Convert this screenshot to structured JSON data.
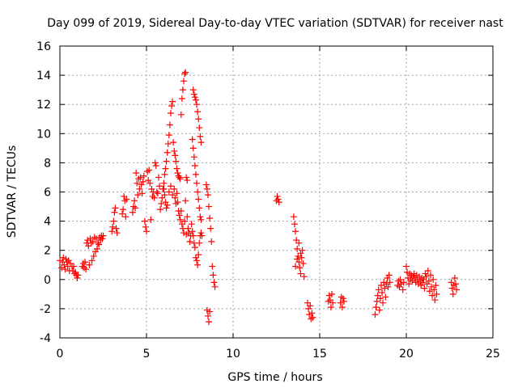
{
  "chart_data": {
    "type": "scatter",
    "title": "Day 099 of 2019, Sidereal Day-to-day VTEC variation (SDTVAR) for receiver nast",
    "xlabel": "GPS time / hours",
    "ylabel": "SDTVAR / TECUs",
    "xlim": [
      0,
      25
    ],
    "ylim": [
      -4,
      16
    ],
    "xticks": [
      0,
      5,
      10,
      15,
      20,
      25
    ],
    "yticks": [
      -4,
      -2,
      0,
      2,
      4,
      6,
      8,
      10,
      12,
      14,
      16
    ],
    "grid": true,
    "marker": "+",
    "series": [
      {
        "name": "SDTVAR",
        "color": "#ff0000",
        "points": [
          [
            0.0,
            1.3
          ],
          [
            0.1,
            0.8
          ],
          [
            0.15,
            1.2
          ],
          [
            0.2,
            1.5
          ],
          [
            0.25,
            1.0
          ],
          [
            0.3,
            0.7
          ],
          [
            0.35,
            1.4
          ],
          [
            0.4,
            1.2
          ],
          [
            0.45,
            0.9
          ],
          [
            0.5,
            1.3
          ],
          [
            0.55,
            0.6
          ],
          [
            0.6,
            1.1
          ],
          [
            0.7,
            0.9
          ],
          [
            0.75,
            0.6
          ],
          [
            0.8,
            0.9
          ],
          [
            0.85,
            0.4
          ],
          [
            0.9,
            0.5
          ],
          [
            0.95,
            0.3
          ],
          [
            1.0,
            0.1
          ],
          [
            1.05,
            0.3
          ],
          [
            1.3,
            0.9
          ],
          [
            1.35,
            1.1
          ],
          [
            1.4,
            0.8
          ],
          [
            1.45,
            1.2
          ],
          [
            1.5,
            0.7
          ],
          [
            1.55,
            2.5
          ],
          [
            1.6,
            2.7
          ],
          [
            1.65,
            2.3
          ],
          [
            1.7,
            1.0
          ],
          [
            1.75,
            2.8
          ],
          [
            1.8,
            2.5
          ],
          [
            1.85,
            1.3
          ],
          [
            1.9,
            2.6
          ],
          [
            1.95,
            1.6
          ],
          [
            2.0,
            2.9
          ],
          [
            2.05,
            1.9
          ],
          [
            2.1,
            2.8
          ],
          [
            2.15,
            2.1
          ],
          [
            2.2,
            2.5
          ],
          [
            2.25,
            2.4
          ],
          [
            2.3,
            2.9
          ],
          [
            2.35,
            2.7
          ],
          [
            2.4,
            3.0
          ],
          [
            2.45,
            2.8
          ],
          [
            2.5,
            3.0
          ],
          [
            3.0,
            3.3
          ],
          [
            3.05,
            3.6
          ],
          [
            3.1,
            4.0
          ],
          [
            3.15,
            4.6
          ],
          [
            3.2,
            4.9
          ],
          [
            3.25,
            3.5
          ],
          [
            3.3,
            3.2
          ],
          [
            3.6,
            4.5
          ],
          [
            3.65,
            4.8
          ],
          [
            3.7,
            5.7
          ],
          [
            3.75,
            5.4
          ],
          [
            3.8,
            4.3
          ],
          [
            3.85,
            5.5
          ],
          [
            4.2,
            4.6
          ],
          [
            4.25,
            5.0
          ],
          [
            4.3,
            5.4
          ],
          [
            4.35,
            4.9
          ],
          [
            4.4,
            7.3
          ],
          [
            4.45,
            6.6
          ],
          [
            4.5,
            5.8
          ],
          [
            4.55,
            6.9
          ],
          [
            4.6,
            6.2
          ],
          [
            4.65,
            7.0
          ],
          [
            4.7,
            6.5
          ],
          [
            4.75,
            5.9
          ],
          [
            4.8,
            6.7
          ],
          [
            4.85,
            7.1
          ],
          [
            4.9,
            4.0
          ],
          [
            4.95,
            3.6
          ],
          [
            5.0,
            3.3
          ],
          [
            5.05,
            7.4
          ],
          [
            5.1,
            6.8
          ],
          [
            5.15,
            7.5
          ],
          [
            5.2,
            6.6
          ],
          [
            5.25,
            4.1
          ],
          [
            5.3,
            6.2
          ],
          [
            5.35,
            5.7
          ],
          [
            5.4,
            6.0
          ],
          [
            5.45,
            5.6
          ],
          [
            5.5,
            8.0
          ],
          [
            5.55,
            7.8
          ],
          [
            5.6,
            6.0
          ],
          [
            5.65,
            5.9
          ],
          [
            5.7,
            7.0
          ],
          [
            5.75,
            6.4
          ],
          [
            5.8,
            4.8
          ],
          [
            5.85,
            5.2
          ],
          [
            5.9,
            5.6
          ],
          [
            5.95,
            6.2
          ],
          [
            6.0,
            6.6
          ],
          [
            6.05,
            7.2
          ],
          [
            6.1,
            7.6
          ],
          [
            6.15,
            8.1
          ],
          [
            6.2,
            8.7
          ],
          [
            6.25,
            9.3
          ],
          [
            6.3,
            9.9
          ],
          [
            6.35,
            10.6
          ],
          [
            6.4,
            11.4
          ],
          [
            6.45,
            11.9
          ],
          [
            6.5,
            12.2
          ],
          [
            6.55,
            9.4
          ],
          [
            6.6,
            8.8
          ],
          [
            6.65,
            8.5
          ],
          [
            6.7,
            8.1
          ],
          [
            6.75,
            7.6
          ],
          [
            6.8,
            7.3
          ],
          [
            6.85,
            7.1
          ],
          [
            6.9,
            7.0
          ],
          [
            6.95,
            6.9
          ],
          [
            7.0,
            11.3
          ],
          [
            7.05,
            12.4
          ],
          [
            7.1,
            13.0
          ],
          [
            7.15,
            13.6
          ],
          [
            7.2,
            14.1
          ],
          [
            7.25,
            14.2
          ],
          [
            7.3,
            7.0
          ],
          [
            7.35,
            6.8
          ],
          [
            6.0,
            6.2
          ],
          [
            6.05,
            5.8
          ],
          [
            6.1,
            5.3
          ],
          [
            6.15,
            4.9
          ],
          [
            6.2,
            5.1
          ],
          [
            6.3,
            6.0
          ],
          [
            6.4,
            6.4
          ],
          [
            6.5,
            5.8
          ],
          [
            6.6,
            6.2
          ],
          [
            6.65,
            5.6
          ],
          [
            6.7,
            5.2
          ],
          [
            6.75,
            5.9
          ],
          [
            6.8,
            5.3
          ],
          [
            6.85,
            4.7
          ],
          [
            6.9,
            4.4
          ],
          [
            6.95,
            4.1
          ],
          [
            7.0,
            4.7
          ],
          [
            7.05,
            3.8
          ],
          [
            7.1,
            3.5
          ],
          [
            7.15,
            3.2
          ],
          [
            7.2,
            4.0
          ],
          [
            7.25,
            5.4
          ],
          [
            7.3,
            3.1
          ],
          [
            7.35,
            4.3
          ],
          [
            7.4,
            3.5
          ],
          [
            7.45,
            3.2
          ],
          [
            7.5,
            2.6
          ],
          [
            7.55,
            3.0
          ],
          [
            7.65,
            9.6
          ],
          [
            7.7,
            9.0
          ],
          [
            7.75,
            8.4
          ],
          [
            7.8,
            7.8
          ],
          [
            7.85,
            7.2
          ],
          [
            7.9,
            6.6
          ],
          [
            7.95,
            6.0
          ],
          [
            8.0,
            5.5
          ],
          [
            8.05,
            4.9
          ],
          [
            8.1,
            4.3
          ],
          [
            8.15,
            4.1
          ],
          [
            7.7,
            13.0
          ],
          [
            7.75,
            12.7
          ],
          [
            7.8,
            12.5
          ],
          [
            7.85,
            12.3
          ],
          [
            7.9,
            12.0
          ],
          [
            7.95,
            11.5
          ],
          [
            8.0,
            11.0
          ],
          [
            8.05,
            10.4
          ],
          [
            8.1,
            9.8
          ],
          [
            8.15,
            9.4
          ],
          [
            7.6,
            3.8
          ],
          [
            7.65,
            3.3
          ],
          [
            7.7,
            3.0
          ],
          [
            7.75,
            2.5
          ],
          [
            7.8,
            2.2
          ],
          [
            7.85,
            1.5
          ],
          [
            7.9,
            1.3
          ],
          [
            7.95,
            1.0
          ],
          [
            8.0,
            1.7
          ],
          [
            8.05,
            2.5
          ],
          [
            8.1,
            3.0
          ],
          [
            8.15,
            3.2
          ],
          [
            8.2,
            3.0
          ],
          [
            8.45,
            6.5
          ],
          [
            8.5,
            6.2
          ],
          [
            8.55,
            5.8
          ],
          [
            8.6,
            5.0
          ],
          [
            8.65,
            4.2
          ],
          [
            8.7,
            3.5
          ],
          [
            8.75,
            2.6
          ],
          [
            8.8,
            0.9
          ],
          [
            8.85,
            0.3
          ],
          [
            8.9,
            -0.2
          ],
          [
            8.95,
            -0.5
          ],
          [
            8.5,
            -2.1
          ],
          [
            8.55,
            -2.5
          ],
          [
            8.6,
            -2.9
          ],
          [
            8.65,
            -2.2
          ],
          [
            12.5,
            5.4
          ],
          [
            12.55,
            5.7
          ],
          [
            12.6,
            5.5
          ],
          [
            12.65,
            5.3
          ],
          [
            13.5,
            4.3
          ],
          [
            13.55,
            3.8
          ],
          [
            13.6,
            3.3
          ],
          [
            13.65,
            2.7
          ],
          [
            13.7,
            2.1
          ],
          [
            13.75,
            1.6
          ],
          [
            13.8,
            1.2
          ],
          [
            13.85,
            0.8
          ],
          [
            13.9,
            0.4
          ],
          [
            13.95,
            1.5
          ],
          [
            14.0,
            2.0
          ],
          [
            14.05,
            1.1
          ],
          [
            14.1,
            0.2
          ],
          [
            13.6,
            0.9
          ],
          [
            13.7,
            1.4
          ],
          [
            13.8,
            2.5
          ],
          [
            13.9,
            1.8
          ],
          [
            14.3,
            -1.6
          ],
          [
            14.35,
            -2.0
          ],
          [
            14.4,
            -2.4
          ],
          [
            14.45,
            -1.8
          ],
          [
            14.5,
            -2.7
          ],
          [
            14.55,
            -2.3
          ],
          [
            14.6,
            -2.6
          ],
          [
            15.5,
            -1.5
          ],
          [
            15.55,
            -1.1
          ],
          [
            15.6,
            -1.4
          ],
          [
            15.65,
            -1.9
          ],
          [
            15.7,
            -1.0
          ],
          [
            15.75,
            -1.6
          ],
          [
            16.2,
            -1.6
          ],
          [
            16.25,
            -1.2
          ],
          [
            16.3,
            -1.9
          ],
          [
            16.35,
            -1.3
          ],
          [
            16.4,
            -1.5
          ],
          [
            18.2,
            -2.4
          ],
          [
            18.25,
            -1.9
          ],
          [
            18.3,
            -1.5
          ],
          [
            18.35,
            -1.1
          ],
          [
            18.4,
            -0.7
          ],
          [
            18.45,
            -2.1
          ],
          [
            18.5,
            -1.3
          ],
          [
            18.55,
            -0.4
          ],
          [
            18.6,
            -0.9
          ],
          [
            18.65,
            -1.6
          ],
          [
            18.7,
            -0.2
          ],
          [
            18.75,
            -0.6
          ],
          [
            18.8,
            -1.2
          ],
          [
            18.85,
            -0.3
          ],
          [
            18.9,
            0.1
          ],
          [
            18.95,
            -0.5
          ],
          [
            19.0,
            0.3
          ],
          [
            19.05,
            -0.2
          ],
          [
            19.5,
            -0.4
          ],
          [
            19.55,
            -0.1
          ],
          [
            19.6,
            -0.5
          ],
          [
            19.65,
            0.0
          ],
          [
            19.7,
            -0.3
          ],
          [
            19.8,
            -0.7
          ],
          [
            19.85,
            -0.2
          ],
          [
            20.0,
            0.9
          ],
          [
            20.05,
            0.5
          ],
          [
            20.1,
            0.1
          ],
          [
            20.15,
            -0.3
          ],
          [
            20.2,
            0.4
          ],
          [
            20.25,
            0.0
          ],
          [
            20.3,
            0.3
          ],
          [
            20.35,
            -0.1
          ],
          [
            20.4,
            0.2
          ],
          [
            20.45,
            0.4
          ],
          [
            20.5,
            0.1
          ],
          [
            20.55,
            -0.2
          ],
          [
            20.6,
            0.3
          ],
          [
            20.65,
            0.0
          ],
          [
            20.7,
            -0.3
          ],
          [
            20.75,
            0.2
          ],
          [
            20.8,
            -0.1
          ],
          [
            20.85,
            -0.4
          ],
          [
            20.9,
            0.1
          ],
          [
            20.95,
            -0.2
          ],
          [
            21.0,
            0.0
          ],
          [
            21.05,
            -0.6
          ],
          [
            21.1,
            0.4
          ],
          [
            21.15,
            0.2
          ],
          [
            21.2,
            -0.3
          ],
          [
            21.25,
            0.6
          ],
          [
            21.3,
            -0.1
          ],
          [
            21.35,
            -0.8
          ],
          [
            21.4,
            0.3
          ],
          [
            21.45,
            -0.5
          ],
          [
            21.5,
            -1.1
          ],
          [
            21.55,
            0.0
          ],
          [
            21.6,
            -0.7
          ],
          [
            21.65,
            -1.4
          ],
          [
            21.7,
            -0.4
          ],
          [
            21.75,
            -1.0
          ],
          [
            22.6,
            -0.2
          ],
          [
            22.65,
            -0.6
          ],
          [
            22.7,
            -1.0
          ],
          [
            22.75,
            -0.4
          ],
          [
            22.8,
            0.1
          ],
          [
            22.85,
            -0.3
          ],
          [
            22.9,
            -0.7
          ]
        ]
      }
    ]
  }
}
